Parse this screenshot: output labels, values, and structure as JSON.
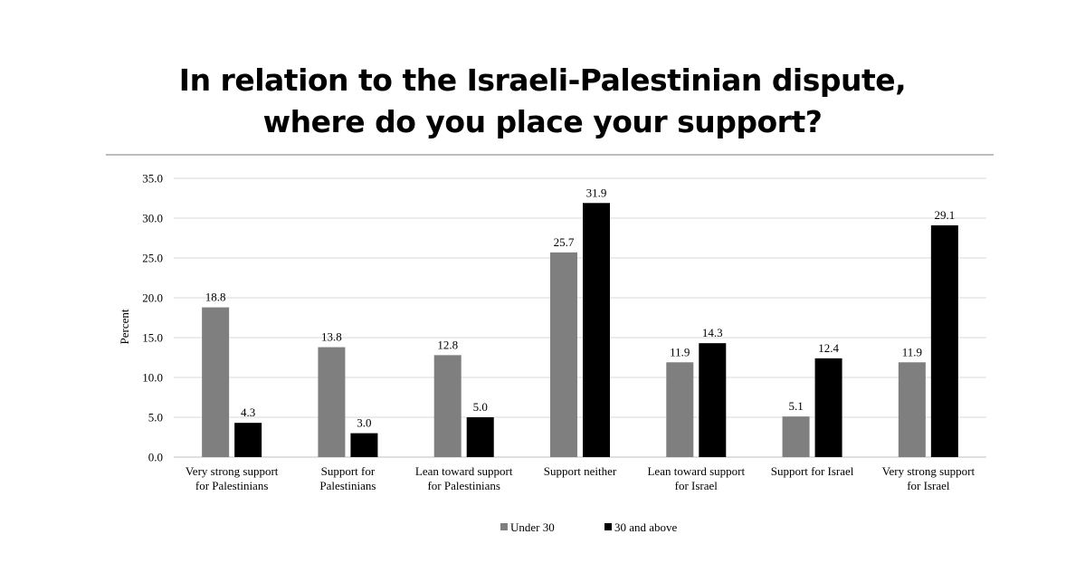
{
  "title_lines": [
    "In relation to the Israeli-Palestinian dispute,",
    "where do you place your support?"
  ],
  "chart_data": {
    "type": "bar",
    "title": "In relation to the Israeli-Palestinian dispute, where do you place your support?",
    "xlabel": "",
    "ylabel": "Percent",
    "ylim": [
      0,
      35
    ],
    "yticks": [
      "0.0",
      "5.0",
      "10.0",
      "15.0",
      "20.0",
      "25.0",
      "30.0",
      "35.0"
    ],
    "grid": true,
    "legend_position": "bottom",
    "categories": [
      [
        "Very strong support",
        "for Palestinians"
      ],
      [
        "Support for",
        "Palestinians"
      ],
      [
        "Lean toward support",
        "for Palestinians"
      ],
      [
        "Support neither"
      ],
      [
        "Lean toward support",
        "for Israel"
      ],
      [
        "Support for Israel"
      ],
      [
        "Very strong support",
        "for Israel"
      ]
    ],
    "series": [
      {
        "name": "Under 30",
        "color": "#7f7f7f",
        "values": [
          18.8,
          13.8,
          12.8,
          25.7,
          11.9,
          5.1,
          11.9
        ],
        "labels": [
          "18.8",
          "13.8",
          "12.8",
          "25.7",
          "11.9",
          "5.1",
          "11.9"
        ]
      },
      {
        "name": "30 and above",
        "color": "#000000",
        "values": [
          4.3,
          3.0,
          5.0,
          31.9,
          14.3,
          12.4,
          29.1
        ],
        "labels": [
          "4.3",
          "3.0",
          "5.0",
          "31.9",
          "14.3",
          "12.4",
          "29.1"
        ]
      }
    ]
  }
}
